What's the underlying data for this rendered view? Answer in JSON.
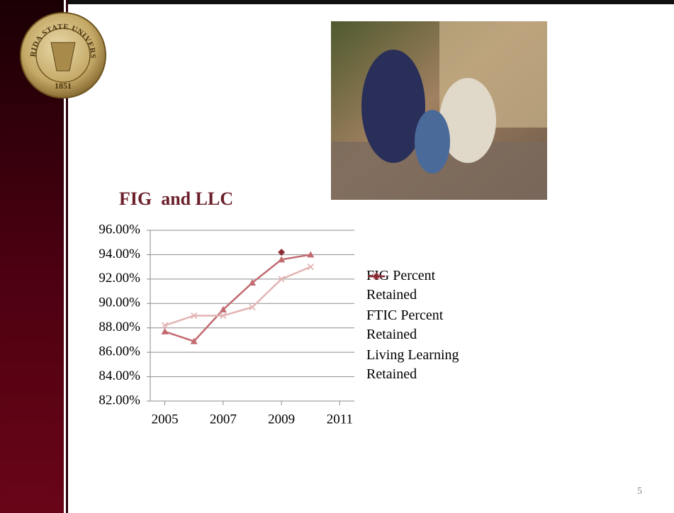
{
  "logo": {
    "text": "FLORIDA STATE UNIVERSITY",
    "year": "1851"
  },
  "slide_number": "5",
  "chart_data": {
    "type": "line",
    "title": "FIG  and LLC",
    "x": [
      2005,
      2006,
      2007,
      2008,
      2009,
      2010
    ],
    "series": [
      {
        "name": "FIG Percent Retained",
        "color": "#c26a70",
        "marker": "triangle",
        "values": [
          87.7,
          86.9,
          89.5,
          91.7,
          93.6,
          94.0
        ]
      },
      {
        "name": "FTIC Percent Retained",
        "color": "#e3b4b4",
        "marker": "x",
        "values": [
          88.2,
          89.0,
          89.0,
          89.7,
          92.0,
          93.0
        ]
      },
      {
        "name": "Living Learning Retained",
        "color": "#8c2a34",
        "marker": "diamond",
        "values": [
          null,
          null,
          null,
          null,
          94.2,
          null
        ]
      }
    ],
    "xlim": [
      2004.5,
      2011.5
    ],
    "xticks": [
      2005,
      2007,
      2009,
      2011
    ],
    "ylim": [
      82,
      96
    ],
    "yticks": [
      {
        "value": 82,
        "label": "82.00%"
      },
      {
        "value": 84,
        "label": "84.00%"
      },
      {
        "value": 86,
        "label": "86.00%"
      },
      {
        "value": 88,
        "label": "88.00%"
      },
      {
        "value": 90,
        "label": "90.00%"
      },
      {
        "value": 92,
        "label": "92.00%"
      },
      {
        "value": 94,
        "label": "94.00%"
      },
      {
        "value": 96,
        "label": "96.00%"
      }
    ],
    "grid": true,
    "legend": "right"
  }
}
